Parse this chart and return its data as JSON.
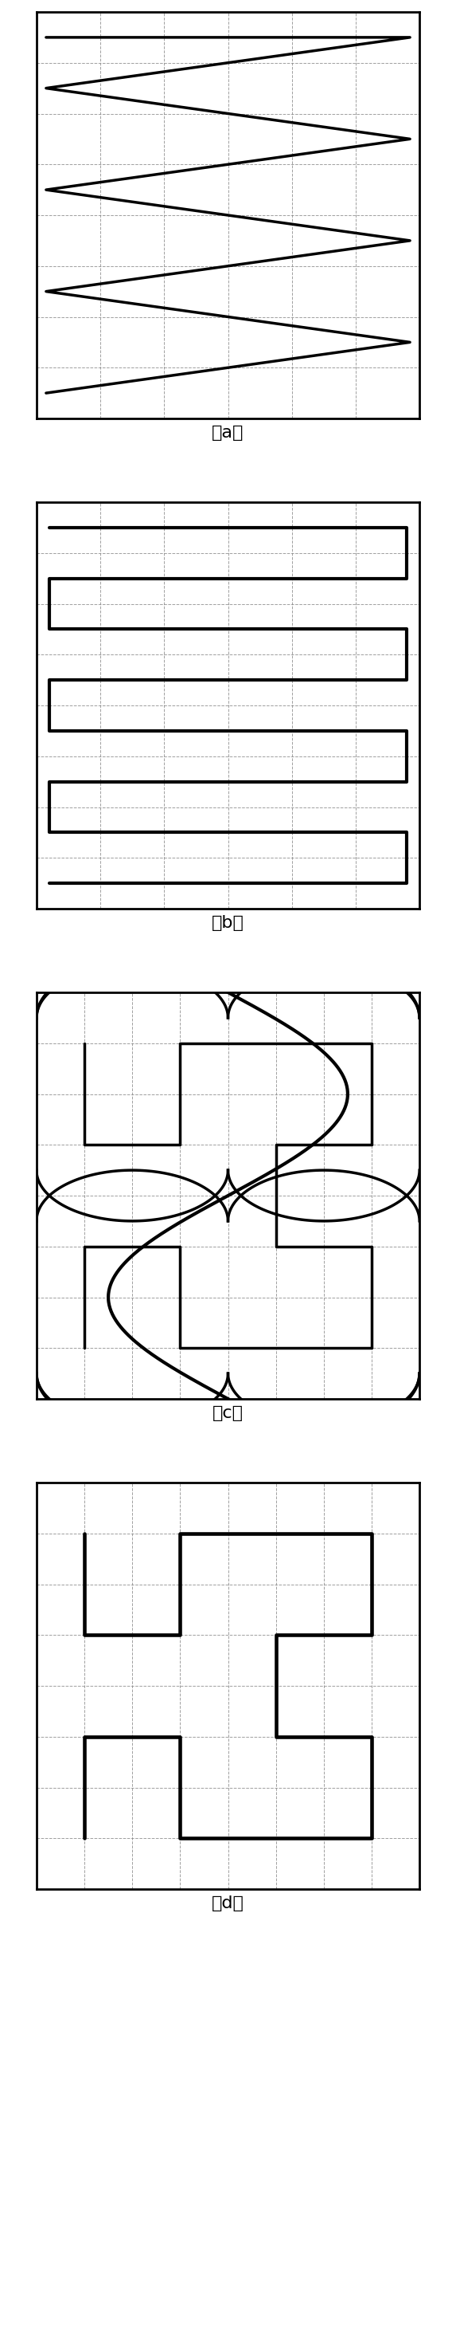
{
  "fig_width": 5.73,
  "fig_height": 29.47,
  "bg_color": "#ffffff",
  "line_color": "#000000",
  "grid_color": "#888888",
  "label_fontsize": 16,
  "labels": [
    "（a）",
    "（b）",
    "（c）",
    "（d）"
  ],
  "lw_main": 2.5,
  "lw_curve": 2.8
}
